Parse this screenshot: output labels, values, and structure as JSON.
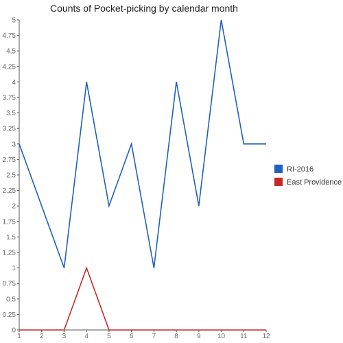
{
  "chart_data": {
    "type": "line",
    "title": "Counts of Pocket-picking by calendar month",
    "xlabel": "",
    "ylabel": "",
    "x": [
      1,
      2,
      3,
      4,
      5,
      6,
      7,
      8,
      9,
      10,
      11,
      12
    ],
    "x_ticks": [
      "1",
      "2",
      "3",
      "4",
      "5",
      "6",
      "7",
      "8",
      "9",
      "10",
      "11",
      "12"
    ],
    "ylim": [
      0,
      5
    ],
    "y_ticks": [
      "0",
      "0.25",
      "0.5",
      "0.75",
      "1",
      "1.25",
      "1.5",
      "1.75",
      "2",
      "2.25",
      "2.5",
      "2.75",
      "3",
      "3.25",
      "3.5",
      "3.75",
      "4",
      "4.25",
      "4.5",
      "4.75",
      "5"
    ],
    "grid": false,
    "legend_position": "right",
    "series": [
      {
        "name": "RI-2016",
        "color": "#1f5fbf",
        "values": [
          3,
          2,
          1,
          4,
          2,
          3,
          1,
          4,
          2,
          5,
          3,
          3
        ]
      },
      {
        "name": "East Providence",
        "color": "#c62828",
        "values": [
          0,
          0,
          0,
          1,
          0,
          0,
          0,
          0,
          0,
          0,
          0,
          0
        ]
      }
    ]
  }
}
